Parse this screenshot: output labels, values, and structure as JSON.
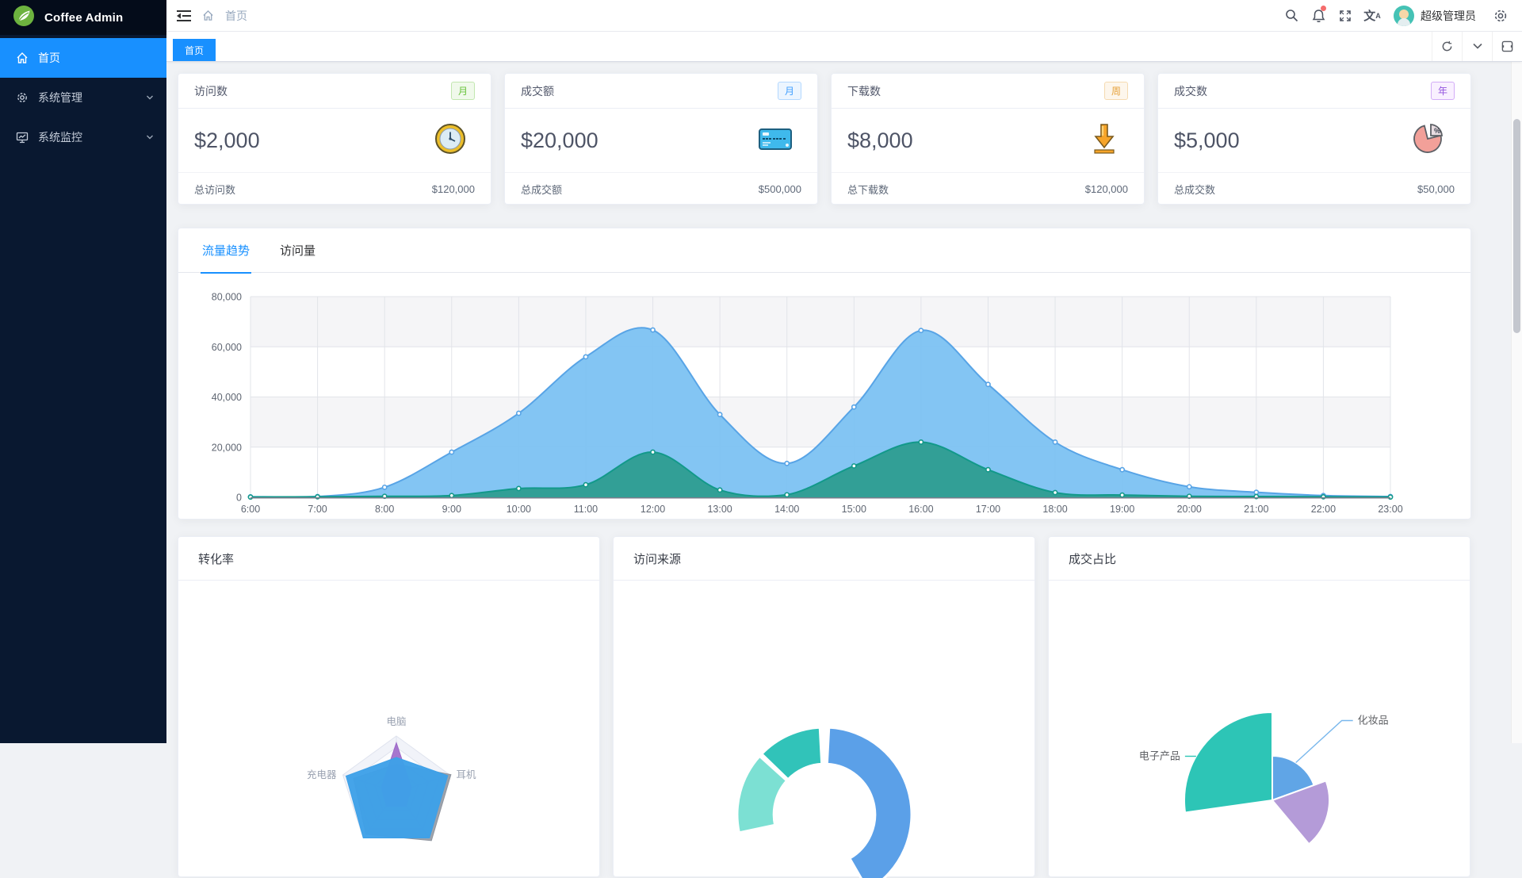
{
  "app": {
    "logo_text": "Coffee Admin",
    "primary_color": "#1890ff",
    "sidebar_bg": "#091830",
    "sidebar_logo_bg": "#040c1a"
  },
  "sidebar": {
    "items": [
      {
        "label": "首页",
        "icon": "home-icon",
        "active": true,
        "has_children": false
      },
      {
        "label": "系统管理",
        "icon": "gear-icon",
        "active": false,
        "has_children": true
      },
      {
        "label": "系统监控",
        "icon": "monitor-icon",
        "active": false,
        "has_children": true
      }
    ]
  },
  "navbar": {
    "breadcrumb": "首页",
    "username": "超级管理员",
    "icons": [
      "fold-icon",
      "home-icon",
      "search-icon",
      "bell-icon",
      "fullscreen-icon",
      "translate-icon",
      "gear-icon"
    ],
    "translate_glyph": "文A",
    "notification_dot_color": "#f56c6c"
  },
  "tabbar": {
    "tabs": [
      {
        "label": "首页",
        "active": true
      }
    ],
    "controls": [
      "refresh-icon",
      "chevron-down-icon",
      "maximize-icon"
    ]
  },
  "stat_cards": [
    {
      "title": "访问数",
      "period": "月",
      "period_colors": {
        "text": "#67c23a",
        "bg": "#f0f9eb",
        "border": "#c2e7b0"
      },
      "value": "$2,000",
      "icon": "clock-icon",
      "footer_label": "总访问数",
      "footer_value": "$120,000"
    },
    {
      "title": "成交额",
      "period": "月",
      "period_colors": {
        "text": "#409eff",
        "bg": "#ecf5ff",
        "border": "#b3d8ff"
      },
      "value": "$20,000",
      "icon": "credit-card-icon",
      "footer_label": "总成交额",
      "footer_value": "$500,000"
    },
    {
      "title": "下载数",
      "period": "周",
      "period_colors": {
        "text": "#e6a23c",
        "bg": "#fdf6ec",
        "border": "#f5dab1"
      },
      "value": "$8,000",
      "icon": "download-icon",
      "footer_label": "总下载数",
      "footer_value": "$120,000"
    },
    {
      "title": "成交数",
      "period": "年",
      "period_colors": {
        "text": "#9254de",
        "bg": "#f9f0ff",
        "border": "#d3adf7"
      },
      "value": "$5,000",
      "icon": "pie-icon",
      "footer_label": "总成交数",
      "footer_value": "$50,000"
    }
  ],
  "trend_card": {
    "tabs": [
      {
        "label": "流量趋势",
        "active": true
      },
      {
        "label": "访问量",
        "active": false
      }
    ]
  },
  "bottom_cards": [
    {
      "title": "转化率"
    },
    {
      "title": "访问来源"
    },
    {
      "title": "成交占比"
    }
  ],
  "chart_data": [
    {
      "type": "area",
      "title": "流量趋势",
      "x": [
        "6:00",
        "7:00",
        "8:00",
        "9:00",
        "10:00",
        "11:00",
        "12:00",
        "13:00",
        "14:00",
        "15:00",
        "16:00",
        "17:00",
        "18:00",
        "19:00",
        "20:00",
        "21:00",
        "22:00",
        "23:00"
      ],
      "series": [
        {
          "name": "traffic-upper",
          "color": "#58a4e6",
          "fill": "#7cc2f2",
          "fill_opacity": 0.95,
          "values": [
            200,
            300,
            4000,
            18000,
            33500,
            56000,
            66700,
            33000,
            13500,
            36000,
            66500,
            45000,
            22000,
            11000,
            4200,
            2000,
            700,
            300
          ]
        },
        {
          "name": "traffic-lower",
          "color": "#12998a",
          "fill": "#2d9d90",
          "fill_opacity": 0.95,
          "values": [
            100,
            200,
            400,
            700,
            3500,
            5000,
            18000,
            2900,
            1000,
            12500,
            22000,
            11000,
            1900,
            900,
            400,
            300,
            200,
            100
          ]
        }
      ],
      "ylim": [
        0,
        80000
      ],
      "yticks": [
        0,
        20000,
        40000,
        60000,
        80000
      ],
      "grid": true,
      "split_area": true,
      "legend": "none",
      "smooth": true
    },
    {
      "type": "radar",
      "title": "转化率",
      "axes": 5,
      "indicators_visible": [
        "电脑",
        "充电器",
        "耳机"
      ],
      "note": "values normalized 0-1; lower part of chart cut off by viewport",
      "series": [
        {
          "name": "shadow-series",
          "color": "#8e949e",
          "opacity": 0.85,
          "values": [
            0.5,
            1.02,
            1.06,
            0.92,
            0.8
          ]
        },
        {
          "name": "purple-series",
          "color": "#9d68c9",
          "opacity": 0.9,
          "values": [
            0.88,
            0.28,
            0.3,
            0.3,
            0.28
          ]
        },
        {
          "name": "blue-series",
          "color": "#3da0e8",
          "opacity": 0.96,
          "values": [
            0.62,
            0.96,
            1.0,
            1.0,
            0.94
          ]
        }
      ]
    },
    {
      "type": "donut",
      "title": "访问来源",
      "note": "angles in degrees clockwise from 12 o'clock; lower part cut off by viewport",
      "inner_radius_ratio": 0.58,
      "slices": [
        {
          "name": "slice-blue",
          "color": "#5ba0e8",
          "start": 3,
          "end": 150
        },
        {
          "name": "slice-mint",
          "color": "#7ce0d3",
          "start": 258,
          "end": 312
        },
        {
          "name": "slice-teal",
          "color": "#31c3b9",
          "start": 314,
          "end": 357
        }
      ]
    },
    {
      "type": "rose-pie",
      "title": "成交占比",
      "note": "variable-radius pie; lower part cut off by viewport",
      "slices": [
        {
          "label": "电子产品",
          "color": "#2dc5b6",
          "start": 262,
          "end": 360,
          "radius": 111
        },
        {
          "label": "化妆品",
          "color": "#60a5e6",
          "start": 0,
          "end": 70,
          "radius": 56
        },
        {
          "label": "",
          "color": "#b49bd8",
          "start": 70,
          "end": 140,
          "radius": 72
        }
      ],
      "label_color": "#606266"
    }
  ]
}
